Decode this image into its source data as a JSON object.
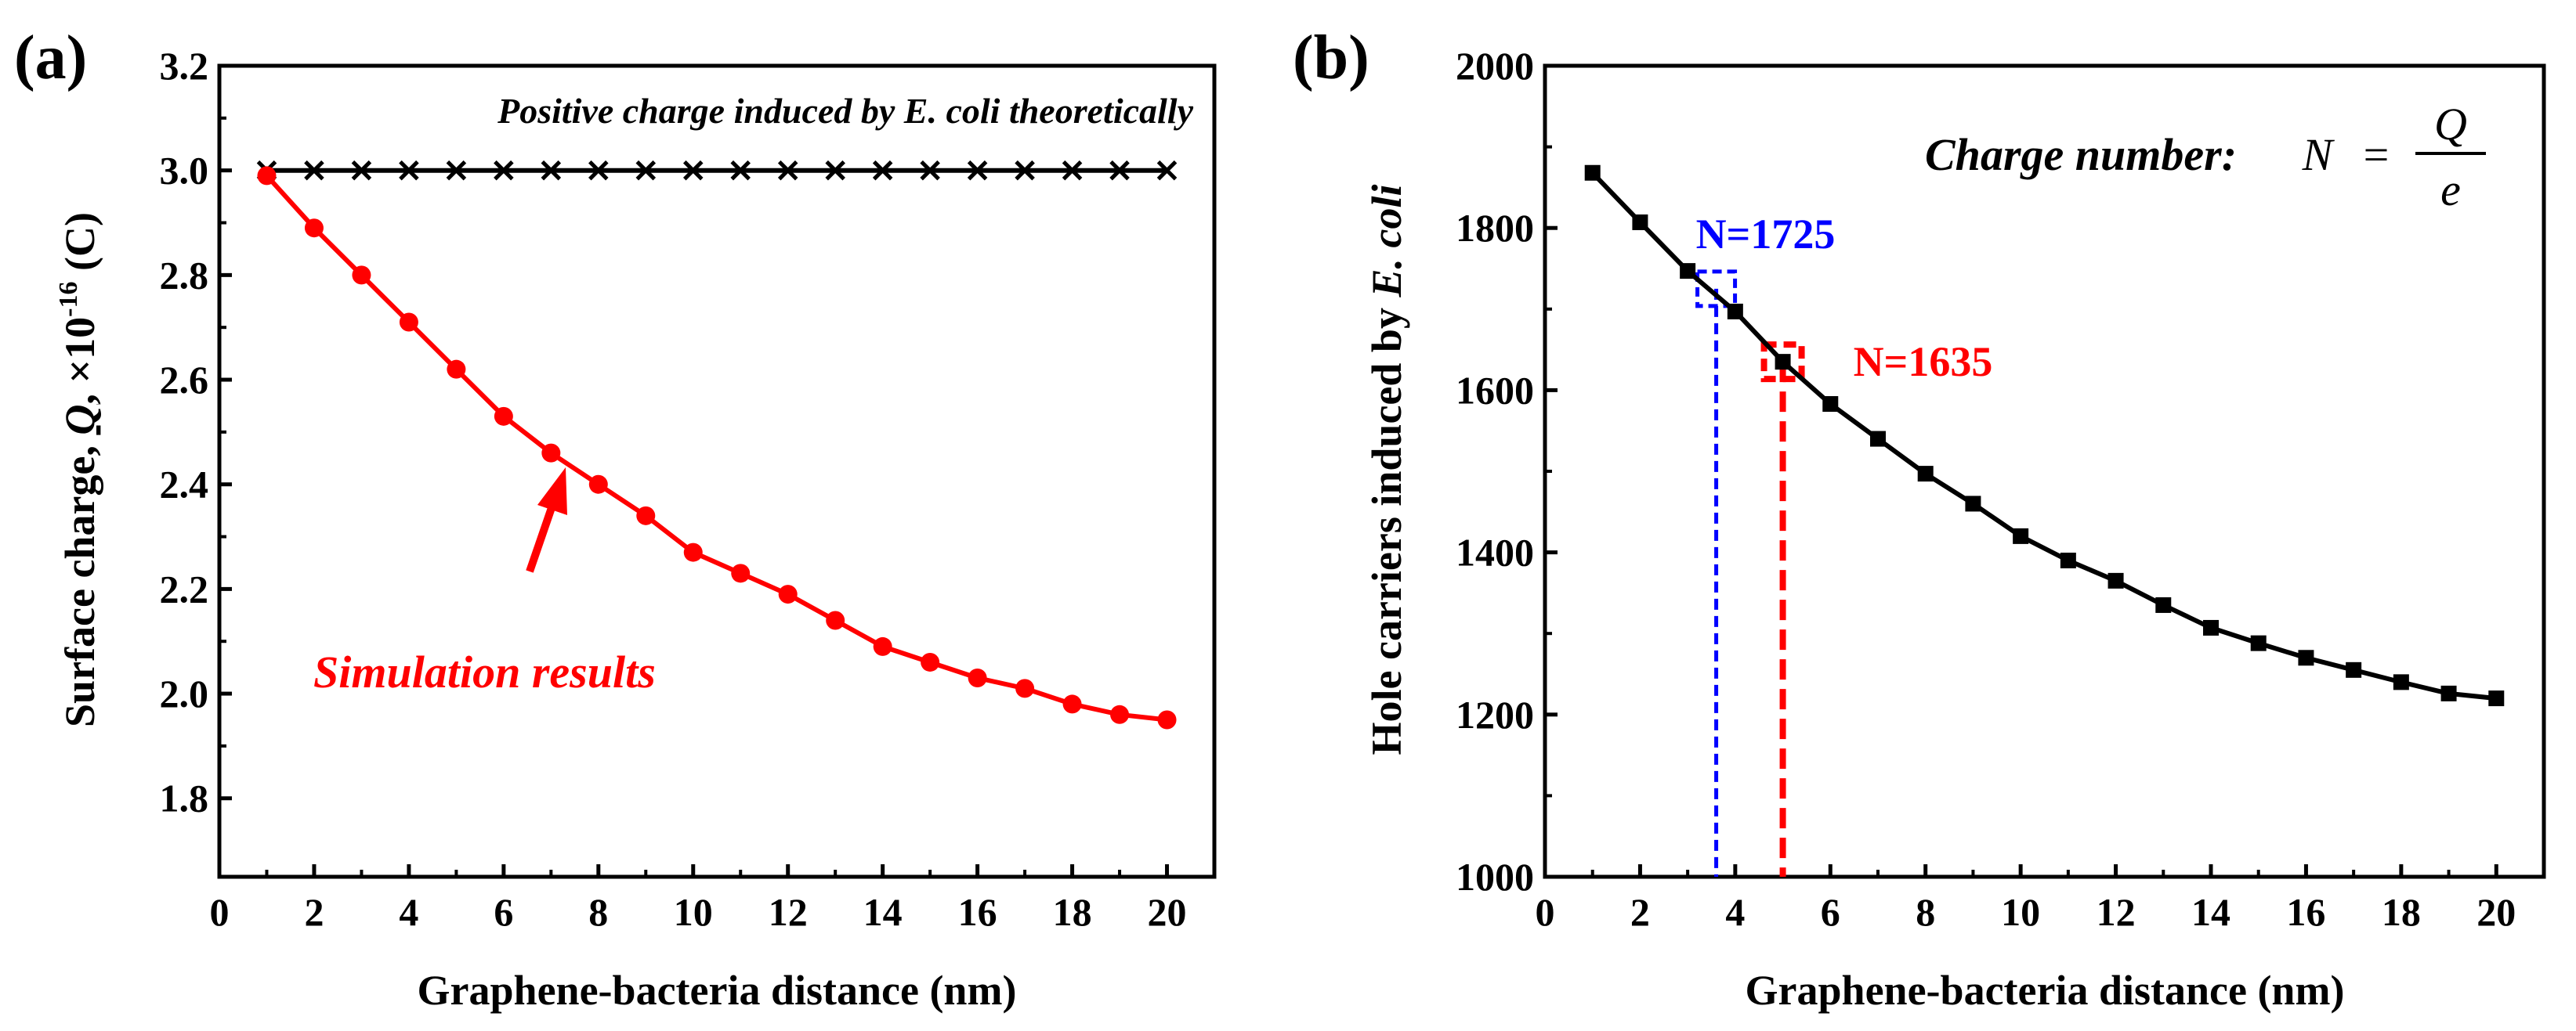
{
  "chart_data": [
    {
      "panel_label": "(a)",
      "type": "line",
      "xlabel": "Graphene-bacteria distance (nm)",
      "ylabel": {
        "prefix": "Surface charge, ",
        "symbol": "Q",
        "mid": ", ×10",
        "exponent": "-16",
        "unit": " (C)"
      },
      "xlim": [
        0,
        21
      ],
      "ylim": [
        1.65,
        3.2
      ],
      "xticks": [
        0,
        2,
        4,
        6,
        8,
        10,
        12,
        14,
        16,
        18,
        20
      ],
      "yticks": [
        1.8,
        2.0,
        2.2,
        2.4,
        2.6,
        2.8,
        3.0,
        3.2
      ],
      "xtick_labels": [
        "0",
        "2",
        "4",
        "6",
        "8",
        "10",
        "12",
        "14",
        "16",
        "18",
        "20"
      ],
      "ytick_labels": [
        "1.8",
        "2.0",
        "2.2",
        "2.4",
        "2.6",
        "2.8",
        "3.0",
        "3.2"
      ],
      "series": [
        {
          "name": "Positive charge induced by E. coli theoretically",
          "color": "#000000",
          "marker": "x",
          "x": [
            1,
            2,
            3,
            4,
            5,
            6,
            7,
            8,
            9,
            10,
            11,
            12,
            13,
            14,
            15,
            16,
            17,
            18,
            19,
            20
          ],
          "values": [
            3.0,
            3.0,
            3.0,
            3.0,
            3.0,
            3.0,
            3.0,
            3.0,
            3.0,
            3.0,
            3.0,
            3.0,
            3.0,
            3.0,
            3.0,
            3.0,
            3.0,
            3.0,
            3.0,
            3.0
          ]
        },
        {
          "name": "Simulation results",
          "color": "#ff0000",
          "marker": "circle",
          "x": [
            1,
            2,
            3,
            4,
            5,
            6,
            7,
            8,
            9,
            10,
            11,
            12,
            13,
            14,
            15,
            16,
            17,
            18,
            19,
            20
          ],
          "values": [
            2.99,
            2.89,
            2.8,
            2.71,
            2.62,
            2.53,
            2.46,
            2.4,
            2.34,
            2.27,
            2.23,
            2.19,
            2.14,
            2.09,
            2.06,
            2.03,
            2.01,
            1.98,
            1.96,
            1.95
          ]
        }
      ],
      "annotations": {
        "theory_label": "Positive charge induced by E. coli theoretically",
        "simulation_label": "Simulation results"
      }
    },
    {
      "panel_label": "(b)",
      "type": "line",
      "xlabel": "Graphene-bacteria distance (nm)",
      "ylabel": {
        "prefix": "Hole carriers induced by ",
        "species": "E. coli"
      },
      "xlim": [
        0,
        21
      ],
      "ylim": [
        1000,
        2000
      ],
      "xticks": [
        0,
        2,
        4,
        6,
        8,
        10,
        12,
        14,
        16,
        18,
        20
      ],
      "yticks": [
        1000,
        1200,
        1400,
        1600,
        1800,
        2000
      ],
      "xtick_labels": [
        "0",
        "2",
        "4",
        "6",
        "8",
        "10",
        "12",
        "14",
        "16",
        "18",
        "20"
      ],
      "ytick_labels": [
        "1000",
        "1200",
        "1400",
        "1600",
        "1800",
        "2000"
      ],
      "series": [
        {
          "name": "Hole carriers",
          "color": "#000000",
          "marker": "square",
          "x": [
            1,
            2,
            3,
            4,
            5,
            6,
            7,
            8,
            9,
            10,
            11,
            12,
            13,
            14,
            15,
            16,
            17,
            18,
            19,
            20
          ],
          "values": [
            1868,
            1807,
            1747,
            1697,
            1635,
            1583,
            1540,
            1497,
            1460,
            1420,
            1390,
            1365,
            1335,
            1307,
            1288,
            1270,
            1255,
            1240,
            1226,
            1220
          ]
        }
      ],
      "highlights": [
        {
          "label": "N=1725",
          "x": 3.6,
          "y": 1725,
          "color": "#0000ff"
        },
        {
          "label": "N=1635",
          "x": 5.0,
          "y": 1635,
          "color": "#ff0000"
        }
      ],
      "formula": {
        "label": "Charge number:",
        "lhs": "N",
        "equals": "=",
        "numerator": "Q",
        "denominator": "e"
      }
    }
  ]
}
